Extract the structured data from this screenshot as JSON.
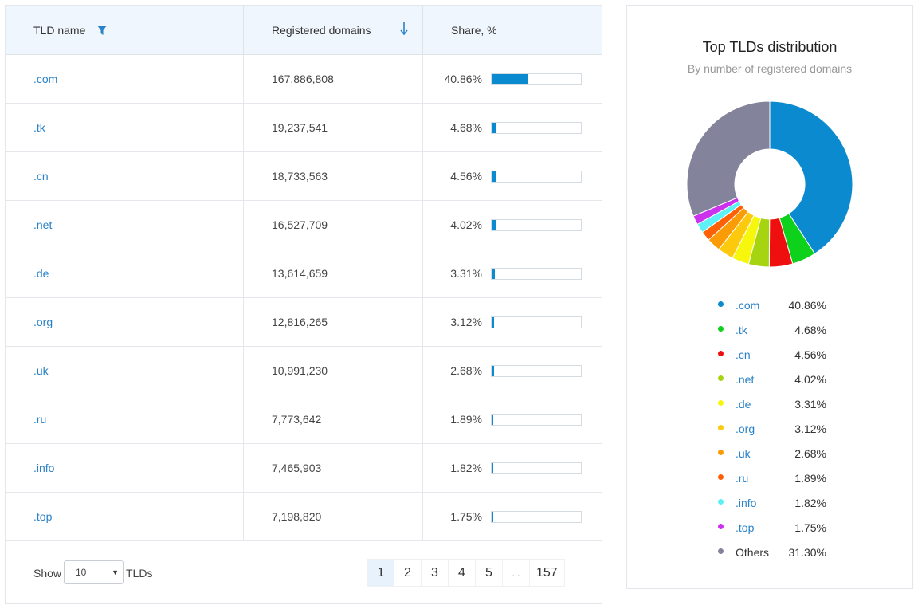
{
  "table": {
    "headers": {
      "tld_name": "TLD name",
      "registered": "Registered domains",
      "share": "Share, %"
    },
    "rows": [
      {
        "tld": ".com",
        "count": "167,886,808",
        "share": "40.86%",
        "value": 40.86
      },
      {
        "tld": ".tk",
        "count": "19,237,541",
        "share": "4.68%",
        "value": 4.68
      },
      {
        "tld": ".cn",
        "count": "18,733,563",
        "share": "4.56%",
        "value": 4.56
      },
      {
        "tld": ".net",
        "count": "16,527,709",
        "share": "4.02%",
        "value": 4.02
      },
      {
        "tld": ".de",
        "count": "13,614,659",
        "share": "3.31%",
        "value": 3.31
      },
      {
        "tld": ".org",
        "count": "12,816,265",
        "share": "3.12%",
        "value": 3.12
      },
      {
        "tld": ".uk",
        "count": "10,991,230",
        "share": "2.68%",
        "value": 2.68
      },
      {
        "tld": ".ru",
        "count": "7,773,642",
        "share": "1.89%",
        "value": 1.89
      },
      {
        "tld": ".info",
        "count": "7,465,903",
        "share": "1.82%",
        "value": 1.82
      },
      {
        "tld": ".top",
        "count": "7,198,820",
        "share": "1.75%",
        "value": 1.75
      }
    ],
    "bar_color": "#0b8acf"
  },
  "footer": {
    "show_label": "Show",
    "page_size": "10",
    "tlds_label": "TLDs",
    "pages": [
      "1",
      "2",
      "3",
      "4",
      "5",
      "...",
      "157"
    ],
    "active_page": "1"
  },
  "chart": {
    "title": "Top TLDs distribution",
    "subtitle": "By number of registered domains"
  },
  "chart_data": {
    "type": "pie",
    "donut": true,
    "title": "Top TLDs distribution",
    "subtitle": "By number of registered domains",
    "categories": [
      ".com",
      ".tk",
      ".cn",
      ".net",
      ".de",
      ".org",
      ".uk",
      ".ru",
      ".info",
      ".top",
      "Others"
    ],
    "values": [
      40.86,
      4.68,
      4.56,
      4.02,
      3.31,
      3.12,
      2.68,
      1.89,
      1.82,
      1.75,
      31.3
    ],
    "labels": [
      "40.86%",
      "4.68%",
      "4.56%",
      "4.02%",
      "3.31%",
      "3.12%",
      "2.68%",
      "1.89%",
      "1.82%",
      "1.75%",
      "31.30%"
    ],
    "colors": [
      "#0b8acf",
      "#0ed11b",
      "#f00f0f",
      "#a6d410",
      "#f6f70d",
      "#fcc90c",
      "#fb9b05",
      "#fd6005",
      "#5df0f4",
      "#cc31ed",
      "#83839c"
    ],
    "legend": "bottom"
  }
}
